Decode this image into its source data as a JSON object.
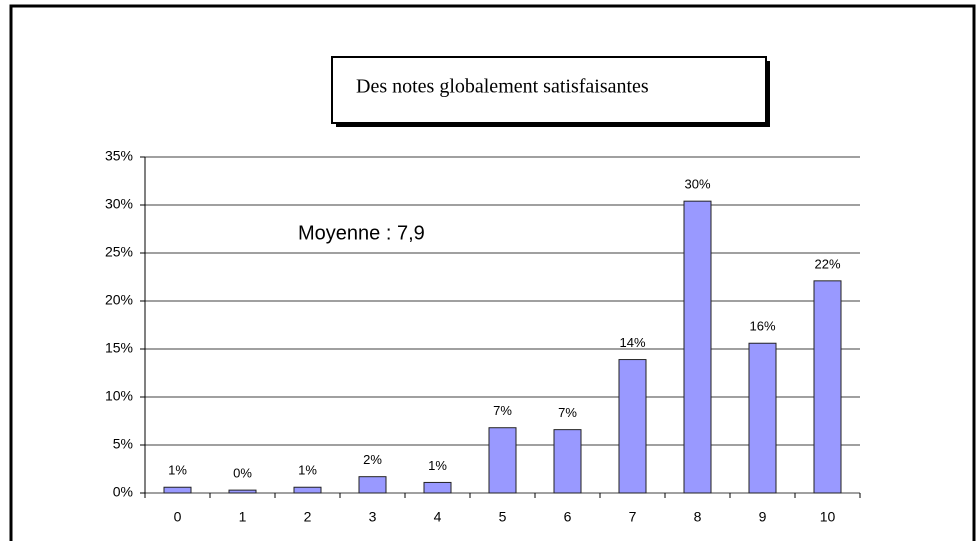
{
  "chart_data": {
    "type": "bar",
    "title": "Des notes globalement satisfaisantes",
    "annotation": "Moyenne : 7,9",
    "categories": [
      "0",
      "1",
      "2",
      "3",
      "4",
      "5",
      "6",
      "7",
      "8",
      "9",
      "10"
    ],
    "values": [
      0.6,
      0.3,
      0.6,
      1.7,
      1.1,
      6.8,
      6.6,
      13.9,
      30.4,
      15.6,
      22.1
    ],
    "value_labels": [
      "1%",
      "0%",
      "1%",
      "2%",
      "1%",
      "7%",
      "7%",
      "14%",
      "30%",
      "16%",
      "22%"
    ],
    "color": "#9999ff",
    "ylim": [
      0,
      35
    ],
    "yticks": [
      {
        "value": 0,
        "label": "0%"
      },
      {
        "value": 5,
        "label": "5%"
      },
      {
        "value": 10,
        "label": "10%"
      },
      {
        "value": 15,
        "label": "15%"
      },
      {
        "value": 20,
        "label": "20%"
      },
      {
        "value": 25,
        "label": "25%"
      },
      {
        "value": 30,
        "label": "30%"
      },
      {
        "value": 35,
        "label": "35%"
      }
    ],
    "grid": true
  }
}
